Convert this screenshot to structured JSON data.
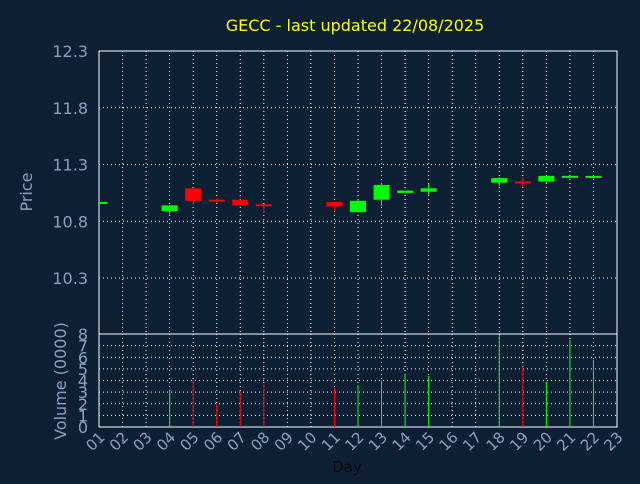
{
  "chart_data": {
    "type": "candlestick",
    "title": "GECC - last updated 22/08/2025",
    "xlabel": "Day",
    "price_ylabel": "Price",
    "volume_ylabel": "Volume (0000)",
    "x_ticks": [
      "01",
      "02",
      "03",
      "04",
      "05",
      "06",
      "07",
      "08",
      "09",
      "10",
      "11",
      "12",
      "13",
      "14",
      "15",
      "16",
      "17",
      "18",
      "19",
      "20",
      "21",
      "22",
      "23"
    ],
    "price_ylim": [
      10.3,
      12.3
    ],
    "price_ticks": [
      "12.3",
      "11.8",
      "11.3",
      "10.8",
      "10.3"
    ],
    "volume_ylim": [
      0,
      8
    ],
    "volume_ticks": [
      "8",
      "7",
      "6",
      "5",
      "4",
      "3",
      "2",
      "1",
      "0"
    ],
    "grid": true,
    "colors": {
      "up": "#00ff00",
      "down": "#ff0000",
      "title": "#ffff00",
      "axis_text": "#8aa0c0",
      "grid": "#ffffff"
    },
    "candles": [
      {
        "day": 1,
        "open": 10.97,
        "high": 10.97,
        "low": 10.97,
        "close": 10.97,
        "volume": 0.0
      },
      {
        "day": 4,
        "open": 10.89,
        "high": 10.94,
        "low": 10.86,
        "close": 10.94,
        "volume": 3.2
      },
      {
        "day": 5,
        "open": 11.09,
        "high": 11.09,
        "low": 10.94,
        "close": 10.98,
        "volume": 4.1
      },
      {
        "day": 6,
        "open": 10.99,
        "high": 11.0,
        "low": 10.96,
        "close": 10.98,
        "volume": 2.0
      },
      {
        "day": 7,
        "open": 10.99,
        "high": 10.99,
        "low": 10.94,
        "close": 10.94,
        "volume": 3.1
      },
      {
        "day": 8,
        "open": 10.95,
        "high": 10.95,
        "low": 10.87,
        "close": 10.94,
        "volume": 3.7
      },
      {
        "day": 11,
        "open": 10.97,
        "high": 10.97,
        "low": 10.89,
        "close": 10.93,
        "volume": 3.4
      },
      {
        "day": 12,
        "open": 10.88,
        "high": 10.99,
        "low": 10.88,
        "close": 10.98,
        "volume": 3.6
      },
      {
        "day": 13,
        "open": 10.99,
        "high": 11.14,
        "low": 10.93,
        "close": 11.12,
        "volume": 4.0
      },
      {
        "day": 14,
        "open": 11.05,
        "high": 11.07,
        "low": 11.05,
        "close": 11.07,
        "volume": 4.6
      },
      {
        "day": 15,
        "open": 11.06,
        "high": 11.13,
        "low": 11.03,
        "close": 11.09,
        "volume": 4.4
      },
      {
        "day": 18,
        "open": 11.14,
        "high": 11.19,
        "low": 11.11,
        "close": 11.18,
        "volume": 7.9
      },
      {
        "day": 19,
        "open": 11.15,
        "high": 11.19,
        "low": 11.1,
        "close": 11.14,
        "volume": 5.2
      },
      {
        "day": 20,
        "open": 11.15,
        "high": 11.2,
        "low": 11.14,
        "close": 11.2,
        "volume": 3.9
      },
      {
        "day": 21,
        "open": 11.19,
        "high": 11.2,
        "low": 11.19,
        "close": 11.2,
        "volume": 7.5
      },
      {
        "day": 22,
        "open": 11.19,
        "high": 11.21,
        "low": 11.19,
        "close": 11.2,
        "volume": 5.8
      }
    ]
  }
}
